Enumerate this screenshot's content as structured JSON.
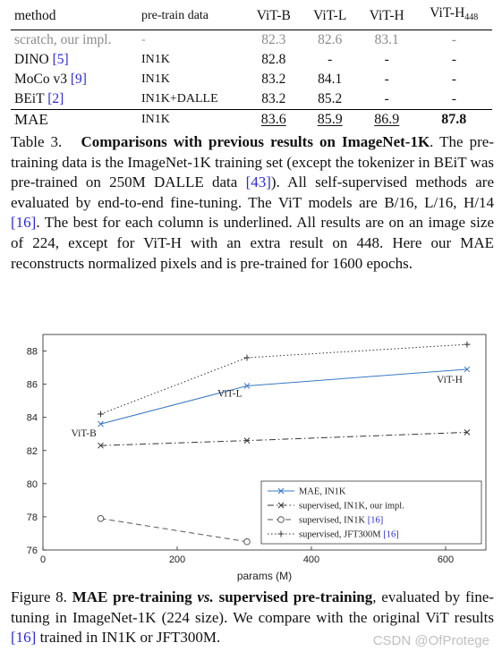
{
  "table": {
    "headers": [
      "method",
      "pre-train data",
      "ViT-B",
      "ViT-L",
      "ViT-H",
      "ViT-H",
      "448"
    ],
    "rows": [
      {
        "method": "scratch, our impl.",
        "ref": "",
        "data": "-",
        "b": "82.3",
        "l": "82.6",
        "h": "83.1",
        "h448": "-"
      },
      {
        "method": "DINO",
        "ref": "[5]",
        "data": "IN1K",
        "b": "82.8",
        "l": "-",
        "h": "-",
        "h448": "-"
      },
      {
        "method": "MoCo v3",
        "ref": "[9]",
        "data": "IN1K",
        "b": "83.2",
        "l": "84.1",
        "h": "-",
        "h448": "-"
      },
      {
        "method": "BEiT",
        "ref": "[2]",
        "data": "IN1K+DALLE",
        "b": "83.2",
        "l": "85.2",
        "h": "-",
        "h448": "-"
      },
      {
        "method": "MAE",
        "ref": "",
        "data": "IN1K",
        "b": "83.6",
        "l": "85.9",
        "h": "86.9",
        "h448": "87.8"
      }
    ]
  },
  "caption1": {
    "label": "Table 3.",
    "bold": "Comparisons with previous results on ImageNet-1K",
    "s1": ". The pre-training data is the ImageNet-1K training set (except the tokenizer in BEiT was pre-trained on 250M DALLE data ",
    "r1": "[43]",
    "s2": "). All self-supervised methods are evaluated by end-to-end fine-tuning. The ViT models are B/16, L/16, H/14 ",
    "r2": "[16]",
    "s3": ". The best for each column is underlined. All results are on an image size of 224, except for ViT-H with an extra result on 448. Here our MAE reconstructs normalized pixels and is pre-trained for 1600 epochs."
  },
  "chart_data": {
    "type": "line",
    "xlabel": "params (M)",
    "ylabel": "",
    "xlim": [
      0,
      660
    ],
    "ylim": [
      76,
      89
    ],
    "xticks": [
      0,
      200,
      400,
      600
    ],
    "yticks": [
      76,
      78,
      80,
      82,
      84,
      86,
      88
    ],
    "grid": false,
    "legend_position": "bottom-right",
    "series": [
      {
        "name": "MAE, IN1K",
        "marker": "x",
        "style": "solid",
        "color": "#3a78c2",
        "x": [
          86,
          304,
          632
        ],
        "y": [
          83.6,
          85.9,
          86.9
        ]
      },
      {
        "name": "supervised, IN1K, our impl.",
        "marker": "x",
        "style": "dashdot",
        "color": "#333333",
        "x": [
          86,
          304,
          632
        ],
        "y": [
          82.3,
          82.6,
          83.1
        ]
      },
      {
        "name": "supervised, IN1K",
        "ref": "[16]",
        "marker": "o",
        "style": "dashed",
        "color": "#555555",
        "x": [
          86,
          304
        ],
        "y": [
          77.9,
          76.5
        ]
      },
      {
        "name": "supervised, JFT300M",
        "ref": "[16]",
        "marker": "+",
        "style": "dotted",
        "color": "#333333",
        "x": [
          86,
          304,
          632
        ],
        "y": [
          84.2,
          87.6,
          88.4
        ]
      }
    ],
    "annotations": [
      {
        "text": "ViT-B",
        "x": 86,
        "y": 83.6
      },
      {
        "text": "ViT-L",
        "x": 304,
        "y": 85.9
      },
      {
        "text": "ViT-H",
        "x": 632,
        "y": 86.9
      }
    ]
  },
  "caption2": {
    "label": "Figure 8.",
    "bold1": "MAE pre-training",
    "vs": "vs.",
    "bold2": "supervised pre-training",
    "s1": ", evaluated by fine-tuning in ImageNet-1K (224 size). We compare with the original ViT results ",
    "r1": "[16]",
    "s2": " trained in IN1K or JFT300M."
  },
  "watermark": "CSDN @OfProtege"
}
